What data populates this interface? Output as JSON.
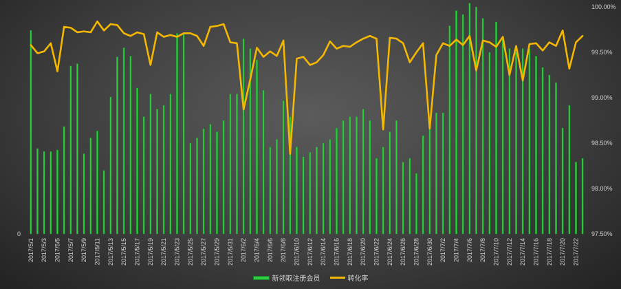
{
  "chart_data": {
    "type": "bar+line",
    "title": "",
    "x": [
      "2017/5/1",
      "2017/5/2",
      "2017/5/3",
      "2017/5/4",
      "2017/5/5",
      "2017/5/6",
      "2017/5/7",
      "2017/5/8",
      "2017/5/9",
      "2017/5/10",
      "2017/5/11",
      "2017/5/12",
      "2017/5/13",
      "2017/5/14",
      "2017/5/15",
      "2017/5/16",
      "2017/5/17",
      "2017/5/18",
      "2017/5/19",
      "2017/5/20",
      "2017/5/21",
      "2017/5/22",
      "2017/5/23",
      "2017/5/24",
      "2017/5/25",
      "2017/5/26",
      "2017/5/27",
      "2017/5/28",
      "2017/5/29",
      "2017/5/30",
      "2017/5/31",
      "2017/6/1",
      "2017/6/2",
      "2017/6/3",
      "2017/6/4",
      "2017/6/5",
      "2017/6/6",
      "2017/6/7",
      "2017/6/8",
      "2017/6/9",
      "2017/6/10",
      "2017/6/11",
      "2017/6/12",
      "2017/6/13",
      "2017/6/14",
      "2017/6/15",
      "2017/6/16",
      "2017/6/17",
      "2017/6/18",
      "2017/6/19",
      "2017/6/20",
      "2017/6/21",
      "2017/6/22",
      "2017/6/23",
      "2017/6/24",
      "2017/6/25",
      "2017/6/26",
      "2017/6/27",
      "2017/6/28",
      "2017/6/29",
      "2017/6/30",
      "2017/7/1",
      "2017/7/2",
      "2017/7/3",
      "2017/7/4",
      "2017/7/5",
      "2017/7/6",
      "2017/7/7",
      "2017/7/8",
      "2017/7/9",
      "2017/7/10",
      "2017/7/11",
      "2017/7/12",
      "2017/7/13",
      "2017/7/14",
      "2017/7/15",
      "2017/7/16",
      "2017/7/17",
      "2017/7/18",
      "2017/7/19",
      "2017/7/20",
      "2017/7/21",
      "2017/7/22",
      "2017/7/23"
    ],
    "x_tick_labels": [
      "2017/5/1",
      "2017/5/3",
      "2017/5/5",
      "2017/5/7",
      "2017/5/9",
      "2017/5/11",
      "2017/5/13",
      "2017/5/15",
      "2017/5/17",
      "2017/5/19",
      "2017/5/21",
      "2017/5/23",
      "2017/5/25",
      "2017/5/27",
      "2017/5/29",
      "2017/5/31",
      "2017/6/2",
      "2017/6/4",
      "2017/6/6",
      "2017/6/8",
      "2017/6/10",
      "2017/6/12",
      "2017/6/14",
      "2017/6/16",
      "2017/6/18",
      "2017/6/20",
      "2017/6/22",
      "2017/6/24",
      "2017/6/26",
      "2017/6/28",
      "2017/6/30",
      "2017/7/2",
      "2017/7/4",
      "2017/7/6",
      "2017/7/8",
      "2017/7/10",
      "2017/7/12",
      "2017/7/14",
      "2017/7/16",
      "2017/7/18",
      "2017/7/20",
      "2017/7/22"
    ],
    "series": [
      {
        "name": "新领取注册会员",
        "type": "bar",
        "axis": "left",
        "values": [
          269,
          113,
          109,
          109,
          111,
          142,
          222,
          225,
          106,
          127,
          136,
          84,
          181,
          234,
          246,
          235,
          193,
          155,
          185,
          165,
          170,
          185,
          265,
          265,
          120,
          127,
          139,
          145,
          135,
          150,
          185,
          185,
          258,
          245,
          230,
          190,
          115,
          125,
          176,
          155,
          115,
          102,
          108,
          115,
          120,
          125,
          140,
          150,
          155,
          155,
          165,
          150,
          100,
          115,
          135,
          150,
          95,
          100,
          80,
          130,
          145,
          160,
          160,
          275,
          295,
          290,
          305,
          300,
          285,
          240,
          280,
          260,
          245,
          240,
          245,
          245,
          235,
          220,
          210,
          200,
          140,
          170,
          95,
          100
        ],
        "color": "#2ecc40"
      },
      {
        "name": "转化率",
        "type": "line",
        "axis": "right",
        "values": [
          99.58,
          99.49,
          99.51,
          99.6,
          99.29,
          99.78,
          99.77,
          99.72,
          99.73,
          99.72,
          99.84,
          99.74,
          99.81,
          99.8,
          99.71,
          99.68,
          99.72,
          99.7,
          99.36,
          99.72,
          99.67,
          99.69,
          99.67,
          99.71,
          99.71,
          99.68,
          99.57,
          99.78,
          99.79,
          99.81,
          99.61,
          99.6,
          98.87,
          99.2,
          99.55,
          99.45,
          99.51,
          99.46,
          99.63,
          98.38,
          99.43,
          99.45,
          99.36,
          99.39,
          99.47,
          99.62,
          99.54,
          99.57,
          99.56,
          99.61,
          99.65,
          99.68,
          99.65,
          98.65,
          99.66,
          99.65,
          99.6,
          99.39,
          99.5,
          99.6,
          98.66,
          99.47,
          99.6,
          99.57,
          99.64,
          99.58,
          99.68,
          99.3,
          99.63,
          99.61,
          99.56,
          99.67,
          99.25,
          99.57,
          99.19,
          99.59,
          99.6,
          99.52,
          99.61,
          99.57,
          99.74,
          99.32,
          99.61,
          99.68
        ],
        "color": "#f5b800"
      }
    ],
    "y_left": {
      "ticks": [
        "0"
      ],
      "min": 0,
      "max": 300
    },
    "y_right": {
      "ticks": [
        "100.00%",
        "99.50%",
        "99.00%",
        "98.50%",
        "98.00%",
        "97.50%"
      ],
      "min": 97.5,
      "max": 100.0
    },
    "xlabel": "",
    "ylabel": "",
    "grid": false,
    "legend_position": "bottom"
  },
  "colors": {
    "background": "#4a4a4a",
    "bar": "#2ecc40",
    "line": "#f5b800",
    "text": "#d0d0d0"
  }
}
